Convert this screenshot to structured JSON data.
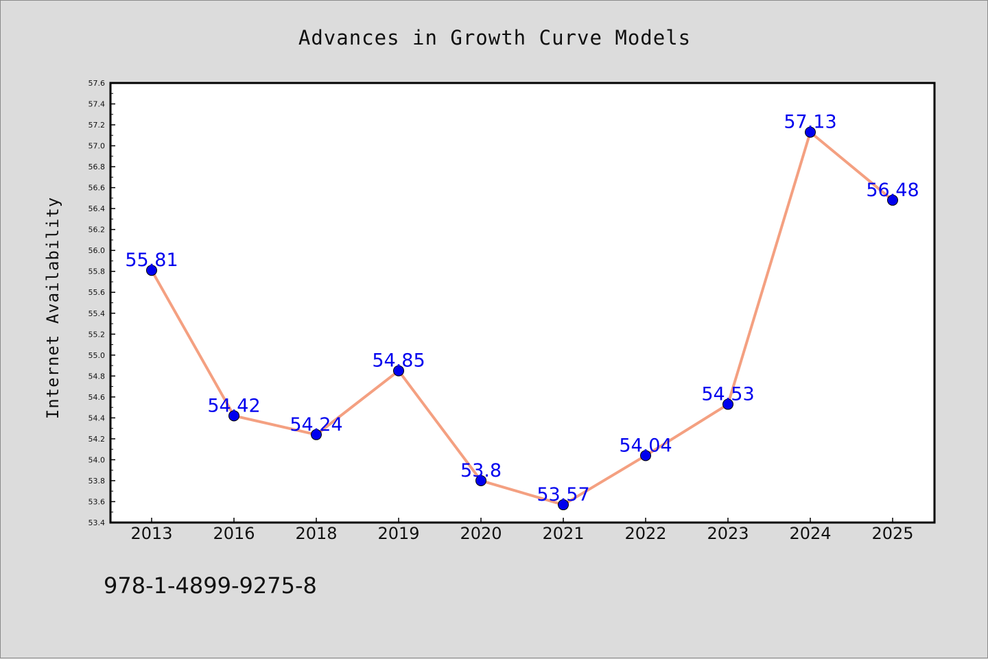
{
  "chart_data": {
    "type": "line",
    "title": "Advances in Growth Curve Models",
    "xlabel": "",
    "ylabel": "Internet Availability",
    "categories": [
      "2013",
      "2016",
      "2018",
      "2019",
      "2020",
      "2021",
      "2022",
      "2023",
      "2024",
      "2025"
    ],
    "series": [
      {
        "values": [
          55.81,
          54.42,
          54.24,
          54.85,
          53.8,
          53.57,
          54.04,
          54.53,
          57.13,
          56.48
        ],
        "data_labels": [
          "55.81",
          "54.42",
          "54.24",
          "54.85",
          "53.8",
          "53.57",
          "54.04",
          "54.53",
          "57.13",
          "56.48"
        ]
      }
    ],
    "ylim": [
      53.4,
      57.6
    ],
    "yticks": [
      "53.4",
      "53.6",
      "53.8",
      "54.0",
      "54.2",
      "54.4",
      "54.6",
      "54.8",
      "55.0",
      "55.2",
      "55.4",
      "55.6",
      "55.8",
      "56.0",
      "56.2",
      "56.4",
      "56.6",
      "56.8",
      "57.0",
      "57.2",
      "57.4",
      "57.6"
    ],
    "grid": false,
    "legend": "none",
    "colors": {
      "line": "#f4a081",
      "marker": "#0000ee",
      "label": "#0000ee",
      "plot_bg": "#ffffff",
      "page_bg": "#dcdcdc"
    },
    "annotation": "978-1-4899-9275-8"
  }
}
